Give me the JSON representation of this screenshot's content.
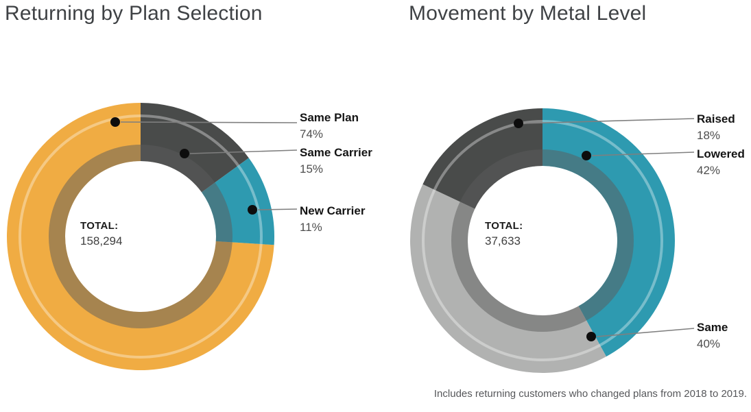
{
  "footnote": "Includes returning customers who changed plans from 2018 to 2019.",
  "chart_data": [
    {
      "type": "donut",
      "title": "Returning by Plan Selection",
      "total": {
        "label": "TOTAL:",
        "value": "158,294"
      },
      "start_angle_deg": 93.6,
      "legend_position": "right-callouts",
      "segments": [
        {
          "label": "Same Plan",
          "value_pct": 74,
          "pct_label": "74%",
          "color": "#F0AC43"
        },
        {
          "label": "Same Carrier",
          "value_pct": 15,
          "pct_label": "15%",
          "color": "#494B4A"
        },
        {
          "label": "New Carrier",
          "value_pct": 11,
          "pct_label": "11%",
          "color": "#2E9AB0"
        }
      ]
    },
    {
      "type": "donut",
      "title": "Movement by Metal Level",
      "total": {
        "label": "TOTAL:",
        "value": "37,633"
      },
      "start_angle_deg": 295.2,
      "legend_position": "right-callouts",
      "segments": [
        {
          "label": "Raised",
          "value_pct": 18,
          "pct_label": "18%",
          "color": "#494B4A"
        },
        {
          "label": "Lowered",
          "value_pct": 42,
          "pct_label": "42%",
          "color": "#2E9AB0"
        },
        {
          "label": "Same",
          "value_pct": 40,
          "pct_label": "40%",
          "color": "#B1B2B1"
        }
      ]
    }
  ],
  "style": {
    "leader_line_color": "#7f7f7f",
    "dot_color": "#0d0d0d",
    "inner_shadow": "rgba(92,92,92,0.5)",
    "outer_highlight": "rgba(255,255,255,0.35)"
  }
}
